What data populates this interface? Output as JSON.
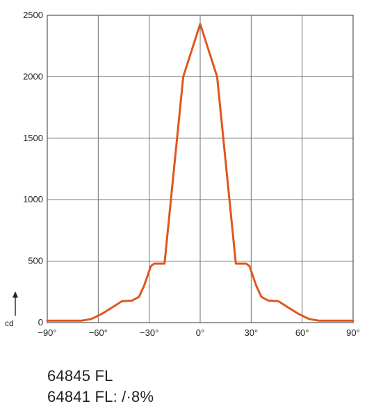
{
  "chart_data": {
    "type": "line",
    "unit_label": "cd",
    "xlim": [
      -90,
      90
    ],
    "ylim": [
      0,
      2500
    ],
    "x_ticks": [
      -90,
      -60,
      -30,
      0,
      30,
      60,
      90
    ],
    "x_tick_labels": [
      "−90°",
      "−60°",
      "−30°",
      "0°",
      "30°",
      "60°",
      "90°"
    ],
    "y_ticks": [
      0,
      500,
      1000,
      1500,
      2000,
      2500
    ],
    "y_tick_labels": [
      "0",
      "500",
      "1000",
      "1500",
      "2000",
      "2500"
    ],
    "grid": true,
    "line_color": "#e0561f",
    "series": [
      {
        "x": [
          -90,
          -70,
          -64,
          -58,
          -51,
          -46,
          -40,
          -36,
          -33,
          -29,
          -27,
          -25,
          -23,
          -21,
          -10,
          0,
          10,
          21,
          23,
          25,
          27,
          29,
          33,
          36,
          40,
          46,
          51,
          58,
          64,
          70,
          90
        ],
        "y": [
          15,
          15,
          30,
          70,
          130,
          175,
          180,
          210,
          300,
          460,
          480,
          480,
          480,
          480,
          2000,
          2430,
          2000,
          480,
          480,
          480,
          480,
          460,
          300,
          210,
          180,
          175,
          130,
          70,
          30,
          15,
          15
        ]
      }
    ]
  },
  "captions": {
    "line1": "64845 FL",
    "line2": "64841 FL: /·8%"
  }
}
